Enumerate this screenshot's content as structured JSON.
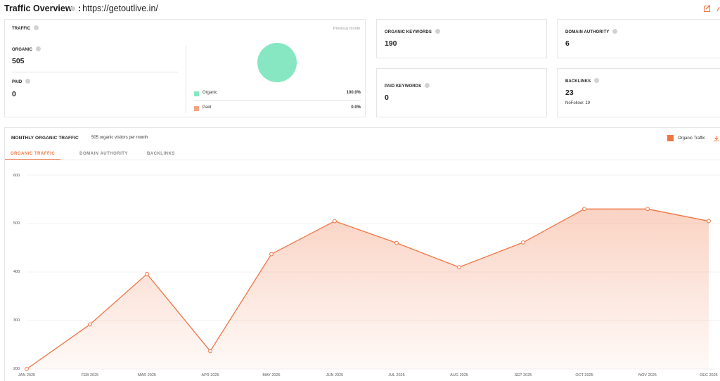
{
  "header": {
    "title": "Traffic Overview",
    "separator": ":",
    "url": "https://getoutlive.in/",
    "icons": [
      "edit-icon",
      "chart-icon"
    ]
  },
  "traffic_card": {
    "label": "TRAFFIC",
    "previous_month": "Previous month",
    "organic_label": "ORGANIC",
    "organic_value": "505",
    "paid_label": "PAID",
    "paid_value": "0",
    "legend": [
      {
        "name": "Organic",
        "percent": "100.0%",
        "color": "#86e7c2"
      },
      {
        "name": "Paid",
        "percent": "0.0%",
        "color": "#f4a584"
      }
    ]
  },
  "organic_keywords": {
    "label": "ORGANIC KEYWORDS",
    "value": "190"
  },
  "paid_keywords": {
    "label": "PAID KEYWORDS",
    "value": "0"
  },
  "domain_authority": {
    "label": "DOMAIN AUTHORITY",
    "value": "6"
  },
  "backlinks": {
    "label": "BACKLINKS",
    "value": "23",
    "nofollow": "NoFollow: 19"
  },
  "monthly": {
    "title": "MONTHLY ORGANIC TRAFFIC",
    "subtitle": "505 organic visitors per month",
    "legend_label": "Organic Traffic",
    "legend_color": "#f07544",
    "tabs": [
      "ORGANIC TRAFFIC",
      "DOMAIN AUTHORITY",
      "BACKLINKS"
    ]
  },
  "chart_data": {
    "type": "area",
    "x": [
      "JAN 2025",
      "FEB 2025",
      "MAR 2025",
      "APR 2025",
      "MAY 2025",
      "JUN 2025",
      "JUL 2025",
      "AUG 2025",
      "SEP 2025",
      "OCT 2025",
      "NOV 2025",
      "DEC 2025"
    ],
    "series": [
      {
        "name": "Organic Traffic",
        "values": [
          200,
          292,
          396,
          237,
          437,
          505,
          460,
          410,
          461,
          530,
          530,
          505
        ]
      }
    ],
    "yticks": [
      "600",
      "500",
      "400",
      "300",
      "200"
    ],
    "ylim": [
      200,
      600
    ],
    "grid": true,
    "legend_position": "top-right"
  }
}
